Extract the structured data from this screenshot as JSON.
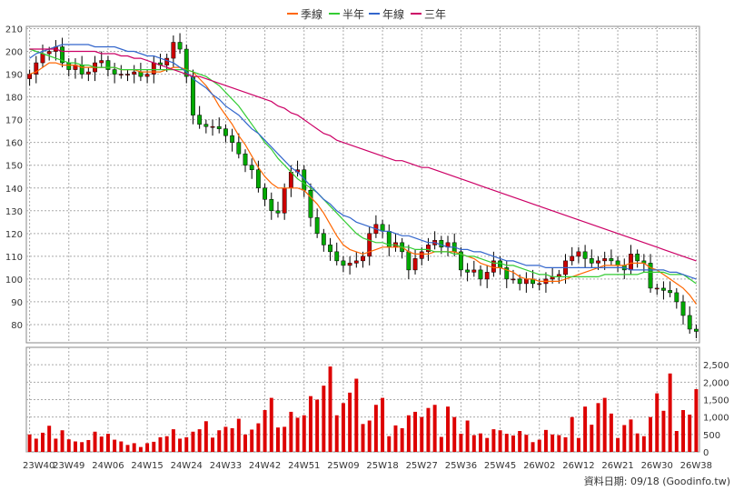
{
  "legend": [
    {
      "label": "季線",
      "color": "#ff6600"
    },
    {
      "label": "半年",
      "color": "#33cc33"
    },
    {
      "label": "年線",
      "color": "#3366cc"
    },
    {
      "label": "三年",
      "color": "#cc0066"
    }
  ],
  "source_label": "資料日期: 09/18 (Goodinfo.tw)",
  "colors": {
    "up": "#cc0000",
    "down": "#00aa00",
    "volume": "#dd0000",
    "grid": "#aaaaaa"
  },
  "chart_data": {
    "type": "candlestick",
    "title": "",
    "x_ticks": [
      "23W40",
      "23W49",
      "24W06",
      "24W15",
      "24W24",
      "24W33",
      "24W42",
      "24W51",
      "25W09",
      "25W18",
      "25W27",
      "25W36",
      "25W45",
      "26W02",
      "26W12",
      "26W21",
      "26W30",
      "26W38"
    ],
    "price_axis": {
      "ylim": [
        72,
        211
      ],
      "ticks": [
        80,
        90,
        100,
        110,
        120,
        130,
        140,
        150,
        160,
        170,
        180,
        190,
        200,
        210
      ],
      "grid": true
    },
    "volume_axis": {
      "ylim": [
        0,
        3000
      ],
      "ticks": [
        0,
        500,
        1000,
        1500,
        2000,
        2500
      ],
      "tick_labels": [
        "0",
        "500",
        "1,000",
        "1,500",
        "2,000",
        "2,500"
      ],
      "grid": true
    },
    "close": [
      190,
      195,
      199,
      200,
      202,
      195,
      192,
      194,
      190,
      191,
      195,
      196,
      192,
      190,
      190,
      190,
      191,
      189,
      190,
      195,
      194,
      197,
      204,
      201,
      189,
      172,
      168,
      167,
      167,
      166,
      163,
      160,
      155,
      150,
      148,
      140,
      135,
      130,
      129,
      140,
      147,
      148,
      139,
      127,
      120,
      115,
      112,
      108,
      106,
      107,
      108,
      110,
      120,
      124,
      121,
      114,
      116,
      112,
      104,
      109,
      112,
      115,
      117,
      114,
      116,
      112,
      104,
      103,
      104,
      100,
      103,
      108,
      105,
      100,
      100,
      98,
      100,
      98,
      98,
      100,
      101,
      102,
      108,
      110,
      112,
      109,
      107,
      108,
      109,
      108,
      106,
      104,
      111,
      108,
      107,
      96,
      96,
      95,
      94,
      90,
      84,
      78,
      77
    ],
    "ma_season": [
      190,
      191,
      193,
      195,
      195,
      194,
      194,
      194,
      193,
      193,
      193,
      193,
      193,
      193,
      192,
      192,
      192,
      191,
      191,
      191,
      191,
      192,
      193,
      193,
      192,
      191,
      188,
      185,
      181,
      176,
      172,
      168,
      163,
      159,
      154,
      149,
      145,
      142,
      140,
      140,
      140,
      140,
      139,
      136,
      133,
      129,
      124,
      119,
      115,
      113,
      112,
      111,
      112,
      113,
      114,
      114,
      114,
      114,
      112,
      111,
      111,
      111,
      112,
      112,
      112,
      112,
      111,
      110,
      109,
      107,
      106,
      105,
      105,
      104,
      103,
      101,
      100,
      100,
      99,
      99,
      99,
      99,
      100,
      101,
      102,
      103,
      104,
      105,
      106,
      106,
      106,
      106,
      107,
      107,
      107,
      105,
      104,
      102,
      100,
      98,
      96,
      93,
      89
    ],
    "ma_halfyear": [
      201,
      200,
      199,
      198,
      197,
      196,
      195,
      195,
      194,
      194,
      193,
      193,
      193,
      193,
      192,
      192,
      192,
      192,
      192,
      192,
      192,
      192,
      192,
      192,
      192,
      191,
      190,
      189,
      187,
      185,
      182,
      179,
      176,
      172,
      168,
      164,
      160,
      157,
      153,
      150,
      147,
      144,
      142,
      140,
      138,
      135,
      132,
      129,
      126,
      123,
      120,
      118,
      117,
      116,
      116,
      115,
      115,
      114,
      114,
      113,
      113,
      113,
      112,
      112,
      112,
      111,
      111,
      110,
      110,
      109,
      108,
      107,
      107,
      106,
      106,
      105,
      104,
      103,
      102,
      102,
      101,
      101,
      101,
      101,
      101,
      101,
      101,
      101,
      102,
      102,
      102,
      102,
      102,
      102,
      103,
      103,
      103,
      103,
      102,
      102,
      102,
      100,
      98
    ],
    "ma_year": [
      197,
      199,
      200,
      201,
      202,
      203,
      203,
      203,
      203,
      203,
      202,
      202,
      202,
      202,
      201,
      200,
      200,
      199,
      198,
      198,
      197,
      196,
      195,
      193,
      191,
      188,
      186,
      184,
      181,
      179,
      176,
      174,
      172,
      169,
      166,
      164,
      161,
      158,
      155,
      152,
      149,
      147,
      144,
      141,
      138,
      135,
      133,
      130,
      128,
      127,
      125,
      124,
      123,
      122,
      121,
      121,
      120,
      119,
      119,
      118,
      117,
      116,
      116,
      115,
      114,
      114,
      113,
      113,
      112,
      112,
      111,
      110,
      109,
      108,
      108,
      107,
      106,
      106,
      106,
      105,
      105,
      105,
      105,
      105,
      105,
      105,
      105,
      105,
      105,
      105,
      105,
      105,
      104,
      104,
      104,
      104,
      104,
      104,
      103,
      103,
      102,
      101,
      100
    ],
    "ma_3year": [
      201,
      201,
      201,
      201,
      201,
      200,
      200,
      200,
      200,
      200,
      200,
      199,
      199,
      199,
      198,
      198,
      197,
      197,
      196,
      195,
      194,
      193,
      192,
      191,
      190,
      189,
      189,
      188,
      187,
      186,
      185,
      184,
      183,
      182,
      181,
      180,
      179,
      178,
      176,
      175,
      173,
      172,
      170,
      168,
      166,
      164,
      163,
      161,
      160,
      159,
      158,
      157,
      156,
      155,
      154,
      153,
      152,
      152,
      151,
      150,
      149,
      149,
      148,
      147,
      146,
      145,
      144,
      143,
      142,
      141,
      140,
      139,
      138,
      137,
      136,
      135,
      134,
      133,
      132,
      131,
      130,
      129,
      128,
      127,
      126,
      125,
      124,
      123,
      122,
      121,
      120,
      119,
      118,
      117,
      116,
      115,
      114,
      113,
      112,
      111,
      110,
      109,
      108
    ],
    "volume": [
      500,
      380,
      550,
      750,
      380,
      620,
      360,
      300,
      280,
      340,
      580,
      440,
      520,
      350,
      300,
      200,
      250,
      140,
      250,
      290,
      420,
      450,
      650,
      380,
      420,
      580,
      650,
      880,
      410,
      620,
      720,
      680,
      950,
      500,
      640,
      820,
      1200,
      1550,
      700,
      720,
      1150,
      980,
      1050,
      1600,
      1500,
      1900,
      2450,
      1050,
      1400,
      1700,
      2100,
      800,
      900,
      1350,
      1550,
      450,
      760,
      680,
      1050,
      1150,
      1000,
      1260,
      1350,
      430,
      1300,
      1000,
      520,
      900,
      480,
      530,
      400,
      650,
      620,
      520,
      470,
      600,
      490,
      280,
      350,
      630,
      500,
      480,
      420,
      1000,
      400,
      1300,
      780,
      1400,
      1550,
      1100,
      400,
      770,
      930,
      530,
      450,
      1000,
      1680,
      1180,
      2250,
      600,
      1200,
      1070,
      1800
    ]
  }
}
